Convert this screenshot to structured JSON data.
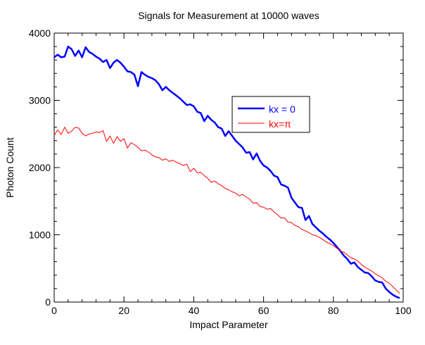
{
  "chart_data": {
    "type": "line",
    "title": "Signals for Measurement at 10000 waves",
    "xlabel": "Impact Parameter",
    "ylabel": "Photon Count",
    "xlim": [
      0,
      100
    ],
    "ylim": [
      0,
      4000
    ],
    "x_ticks": [
      "0",
      "20",
      "40",
      "60",
      "80",
      "100"
    ],
    "y_ticks": [
      "0",
      "1000",
      "2000",
      "3000",
      "4000"
    ],
    "grid": false,
    "legend_position": "center-right",
    "series": [
      {
        "name": "kx = 0",
        "color": "#0000ff",
        "x": [
          0,
          1,
          2,
          3,
          4,
          5,
          6,
          7,
          8,
          9,
          10,
          11,
          12,
          13,
          14,
          15,
          16,
          17,
          18,
          19,
          20,
          21,
          22,
          23,
          24,
          25,
          26,
          27,
          28,
          29,
          30,
          31,
          32,
          33,
          34,
          35,
          36,
          37,
          38,
          39,
          40,
          41,
          42,
          43,
          44,
          45,
          46,
          47,
          48,
          49,
          50,
          51,
          52,
          53,
          54,
          55,
          56,
          57,
          58,
          59,
          60,
          61,
          62,
          63,
          64,
          65,
          66,
          67,
          68,
          69,
          70,
          71,
          72,
          73,
          74,
          75,
          76,
          77,
          78,
          79,
          80,
          81,
          82,
          83,
          84,
          85,
          86,
          87,
          88,
          89,
          90,
          91,
          92,
          93,
          94,
          95,
          96,
          97,
          98,
          99
        ],
        "values": [
          3640,
          3680,
          3640,
          3650,
          3800,
          3760,
          3660,
          3740,
          3640,
          3790,
          3720,
          3690,
          3650,
          3620,
          3570,
          3600,
          3480,
          3560,
          3600,
          3560,
          3500,
          3430,
          3420,
          3380,
          3210,
          3420,
          3380,
          3350,
          3330,
          3300,
          3240,
          3150,
          3200,
          3150,
          3110,
          3070,
          3030,
          2980,
          2930,
          2940,
          2910,
          2830,
          2810,
          2690,
          2770,
          2710,
          2670,
          2600,
          2580,
          2470,
          2540,
          2470,
          2400,
          2350,
          2300,
          2220,
          2230,
          2120,
          2210,
          2100,
          2030,
          2000,
          1950,
          1880,
          1860,
          1750,
          1730,
          1700,
          1550,
          1480,
          1410,
          1400,
          1220,
          1280,
          1160,
          1110,
          1060,
          1020,
          970,
          930,
          880,
          820,
          760,
          690,
          640,
          570,
          590,
          520,
          480,
          440,
          430,
          380,
          320,
          300,
          290,
          200,
          150,
          110,
          80,
          60
        ]
      },
      {
        "name": "kx=π",
        "color": "#ff0000",
        "x": [
          0,
          1,
          2,
          3,
          4,
          5,
          6,
          7,
          8,
          9,
          10,
          11,
          12,
          13,
          14,
          15,
          16,
          17,
          18,
          19,
          20,
          21,
          22,
          23,
          24,
          25,
          26,
          27,
          28,
          29,
          30,
          31,
          32,
          33,
          34,
          35,
          36,
          37,
          38,
          39,
          40,
          41,
          42,
          43,
          44,
          45,
          46,
          47,
          48,
          49,
          50,
          51,
          52,
          53,
          54,
          55,
          56,
          57,
          58,
          59,
          60,
          61,
          62,
          63,
          64,
          65,
          66,
          67,
          68,
          69,
          70,
          71,
          72,
          73,
          74,
          75,
          76,
          77,
          78,
          79,
          80,
          81,
          82,
          83,
          84,
          85,
          86,
          87,
          88,
          89,
          90,
          91,
          92,
          93,
          94,
          95,
          96,
          97,
          98,
          99
        ],
        "values": [
          2480,
          2560,
          2490,
          2600,
          2510,
          2540,
          2600,
          2590,
          2510,
          2470,
          2500,
          2510,
          2530,
          2520,
          2550,
          2390,
          2470,
          2360,
          2460,
          2390,
          2430,
          2290,
          2370,
          2340,
          2300,
          2250,
          2260,
          2230,
          2190,
          2160,
          2150,
          2110,
          2130,
          2090,
          2110,
          2080,
          2060,
          2030,
          2050,
          1940,
          1990,
          1920,
          1930,
          1880,
          1840,
          1780,
          1800,
          1760,
          1730,
          1690,
          1670,
          1640,
          1620,
          1580,
          1600,
          1560,
          1530,
          1470,
          1480,
          1420,
          1410,
          1380,
          1390,
          1340,
          1300,
          1250,
          1250,
          1190,
          1180,
          1140,
          1120,
          1080,
          1060,
          1030,
          1000,
          990,
          960,
          930,
          890,
          870,
          840,
          800,
          760,
          740,
          700,
          660,
          640,
          610,
          560,
          520,
          490,
          460,
          420,
          390,
          360,
          310,
          280,
          230,
          180,
          130
        ]
      }
    ]
  }
}
